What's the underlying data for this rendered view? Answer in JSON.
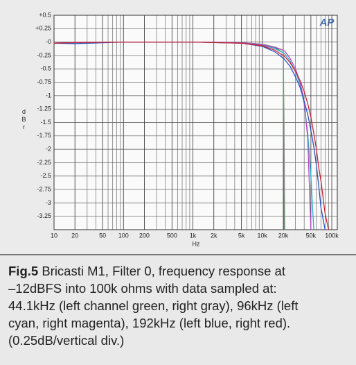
{
  "chart_data": {
    "type": "line",
    "xscale": "log",
    "grid": true,
    "ylabel": "dBr",
    "xlabel": "Hz",
    "logo": "AP",
    "xlim": [
      10,
      120000
    ],
    "ylim": [
      -3.5,
      0.5
    ],
    "xticks": [
      10,
      20,
      50,
      100,
      200,
      500,
      {
        "value": 1000,
        "label": "1k"
      },
      {
        "value": 2000,
        "label": "2k"
      },
      {
        "value": 5000,
        "label": "5k"
      },
      {
        "value": 10000,
        "label": "10k"
      },
      {
        "value": 20000,
        "label": "20k"
      },
      {
        "value": 50000,
        "label": "50k"
      },
      {
        "value": 100000,
        "label": "100k"
      }
    ],
    "xminorticks": [
      30,
      40,
      60,
      70,
      80,
      90,
      300,
      400,
      600,
      700,
      800,
      900,
      3000,
      4000,
      6000,
      7000,
      8000,
      9000,
      30000,
      40000,
      60000,
      70000,
      80000,
      90000
    ],
    "yticks": [
      {
        "value": 0.5,
        "label": "+0.5"
      },
      {
        "value": 0.25,
        "label": "+0.25"
      },
      {
        "value": 0,
        "label": "-0"
      },
      -0.25,
      -0.5,
      -0.75,
      -1,
      -1.25,
      -1.5,
      -1.75,
      -2,
      -2.25,
      -2.5,
      -2.75,
      -3,
      -3.25
    ],
    "x": [
      10,
      20,
      100,
      1000,
      5000,
      10000,
      15000,
      20000,
      20500,
      21000,
      25000,
      30000,
      35000,
      40000,
      45000,
      50000,
      55000,
      60000,
      65000,
      70000,
      80000,
      90000
    ],
    "series": [
      {
        "name": "44.1kHz left",
        "color": "#2e9a3c",
        "values": [
          -0.02,
          -0.01,
          0,
          0,
          -0.01,
          -0.04,
          -0.1,
          -0.2,
          -3.5,
          null,
          null,
          null,
          null,
          null,
          null,
          null,
          null,
          null,
          null,
          null,
          null,
          null
        ]
      },
      {
        "name": "44.1kHz right",
        "color": "#8a8a8a",
        "values": [
          -0.02,
          -0.01,
          0,
          0,
          -0.01,
          -0.04,
          -0.09,
          -0.15,
          -1.5,
          -3.5,
          null,
          null,
          null,
          null,
          null,
          null,
          null,
          null,
          null,
          null,
          null,
          null
        ]
      },
      {
        "name": "96kHz left",
        "color": "#2aaed0",
        "values": [
          -0.02,
          -0.01,
          0,
          0,
          -0.02,
          -0.06,
          -0.12,
          -0.2,
          -0.21,
          -0.22,
          -0.35,
          -0.55,
          -0.8,
          -1.15,
          -1.7,
          -2.5,
          -3.5,
          null,
          null,
          null,
          null,
          null
        ]
      },
      {
        "name": "96kHz right",
        "color": "#b04cc0",
        "values": [
          -0.02,
          -0.01,
          0,
          0,
          -0.01,
          -0.05,
          -0.1,
          -0.15,
          -0.16,
          -0.17,
          -0.3,
          -0.5,
          -0.75,
          -1.1,
          -1.8,
          -3.5,
          null,
          null,
          null,
          null,
          null,
          null
        ]
      },
      {
        "name": "192kHz left",
        "color": "#2452c4",
        "values": [
          -0.02,
          -0.03,
          0,
          0,
          -0.02,
          -0.08,
          -0.18,
          -0.3,
          -0.31,
          -0.33,
          -0.45,
          -0.65,
          -0.85,
          -1.1,
          -1.35,
          -1.65,
          -1.95,
          -2.3,
          -2.7,
          -3.1,
          -3.5,
          null
        ]
      },
      {
        "name": "192kHz right",
        "color": "#d02232",
        "values": [
          -0.02,
          -0.01,
          0,
          0,
          -0.02,
          -0.07,
          -0.15,
          -0.25,
          -0.26,
          -0.27,
          -0.38,
          -0.55,
          -0.72,
          -0.92,
          -1.15,
          -1.4,
          -1.7,
          -2.0,
          -2.35,
          -2.6,
          -3.2,
          -3.5
        ]
      }
    ]
  },
  "caption": {
    "label": "Fig.5",
    "lines": [
      "Bricasti M1, Filter 0, frequency response at",
      "–12dBFS into 100k ohms with data sampled at:",
      "44.1kHz (left channel green, right gray), 96kHz (left",
      "cyan, right magenta), 192kHz (left blue, right red).",
      "(0.25dB/vertical div.)"
    ]
  }
}
